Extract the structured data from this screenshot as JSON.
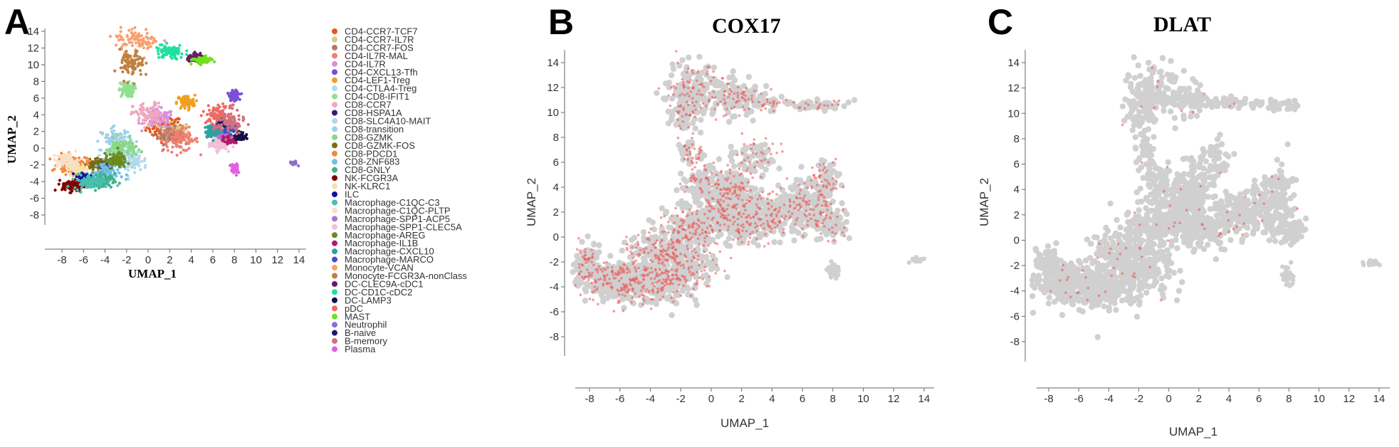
{
  "panels": [
    {
      "id": "A",
      "letter": "A",
      "title": "",
      "xlabel": "UMAP_1",
      "ylabel": "UMAP_2"
    },
    {
      "id": "B",
      "letter": "B",
      "title": "COX17",
      "xlabel": "UMAP_1",
      "ylabel": "UMAP_2"
    },
    {
      "id": "C",
      "letter": "C",
      "title": "DLAT",
      "xlabel": "UMAP_1",
      "ylabel": "UMAP_2"
    }
  ],
  "colors": {
    "background_cells": "#d0d0d0",
    "expression": "#ee5a5a"
  },
  "chart_data": [
    {
      "type": "scatter",
      "panel": "A",
      "xlabel": "UMAP_1",
      "ylabel": "UMAP_2",
      "xlim": [
        -9.5,
        14.5
      ],
      "ylim": [
        -9.5,
        14.8
      ],
      "x_ticks": [
        -8,
        -6,
        -4,
        -2,
        0,
        2,
        4,
        6,
        8,
        10,
        12,
        14
      ],
      "y_ticks": [
        -8,
        -6,
        -4,
        -2,
        0,
        2,
        4,
        6,
        8,
        10,
        12,
        14
      ],
      "legend_placement": "right",
      "series": [
        {
          "name": "CD4-CCR7-TCF7",
          "color": "#e8541e",
          "centers": [
            [
              1.5,
              2.5
            ]
          ],
          "spread": [
            1.2,
            1.0
          ]
        },
        {
          "name": "CD4-CCR7-IL7R",
          "color": "#d8c97e",
          "centers": [
            [
              2.5,
              2.0
            ]
          ],
          "spread": [
            1.0,
            0.8
          ]
        },
        {
          "name": "CD4-CCR7-FOS",
          "color": "#b07a6a",
          "centers": [
            [
              2.0,
              1.5
            ]
          ],
          "spread": [
            0.8,
            0.7
          ]
        },
        {
          "name": "CD4-IL7R-MAL",
          "color": "#f08070",
          "centers": [
            [
              3.0,
              1.0
            ]
          ],
          "spread": [
            1.2,
            1.0
          ]
        },
        {
          "name": "CD4-IL7R",
          "color": "#d890e0",
          "centers": [
            [
              1.0,
              3.5
            ]
          ],
          "spread": [
            1.0,
            0.8
          ]
        },
        {
          "name": "CD4-CXCL13-Tfh",
          "color": "#7a50d8",
          "centers": [
            [
              8.0,
              6.3
            ]
          ],
          "spread": [
            0.3,
            0.4
          ]
        },
        {
          "name": "CD4-LEF1-Treg",
          "color": "#f0a020",
          "centers": [
            [
              3.5,
              5.5
            ]
          ],
          "spread": [
            0.6,
            0.6
          ]
        },
        {
          "name": "CD4-CTLA4-Treg",
          "color": "#a8e0e8",
          "centers": [
            [
              -2.5,
              -1.0
            ]
          ],
          "spread": [
            1.0,
            1.0
          ]
        },
        {
          "name": "CD4-CD8-IFIT1",
          "color": "#90e090",
          "centers": [
            [
              -2.0,
              7.0
            ]
          ],
          "spread": [
            0.5,
            0.6
          ]
        },
        {
          "name": "CD8-CCR7",
          "color": "#f0a8c0",
          "centers": [
            [
              0.0,
              4.0
            ]
          ],
          "spread": [
            1.0,
            1.0
          ]
        },
        {
          "name": "CD8-HSPA1A",
          "color": "#3a1a70",
          "centers": [
            [
              -4.0,
              -2.0
            ]
          ],
          "spread": [
            0.4,
            0.4
          ]
        },
        {
          "name": "CD8-SLC4A10-MAIT",
          "color": "#b0d8ee",
          "centers": [
            [
              -1.5,
              -1.5
            ]
          ],
          "spread": [
            1.0,
            1.0
          ]
        },
        {
          "name": "CD8-transition",
          "color": "#a0d0e8",
          "centers": [
            [
              -3.0,
              1.0
            ]
          ],
          "spread": [
            1.0,
            1.0
          ]
        },
        {
          "name": "CD8-GZMK",
          "color": "#88d888",
          "centers": [
            [
              -2.5,
              0.0
            ]
          ],
          "spread": [
            1.0,
            0.8
          ]
        },
        {
          "name": "CD8-GZMK-FOS",
          "color": "#7a6a18",
          "centers": [
            [
              -5.0,
              -2.0
            ]
          ],
          "spread": [
            0.5,
            0.4
          ]
        },
        {
          "name": "CD8-PDCD1",
          "color": "#f08a40",
          "centers": [
            [
              -7.0,
              -2.0
            ]
          ],
          "spread": [
            1.0,
            0.8
          ]
        },
        {
          "name": "CD8-ZNF683",
          "color": "#70c0e0",
          "centers": [
            [
              -4.0,
              -3.0
            ]
          ],
          "spread": [
            1.0,
            1.0
          ]
        },
        {
          "name": "CD8-GNLY",
          "color": "#40b088",
          "centers": [
            [
              -4.5,
              -4.0
            ]
          ],
          "spread": [
            1.0,
            0.7
          ]
        },
        {
          "name": "NK-FCGR3A",
          "color": "#800000",
          "centers": [
            [
              -7.0,
              -4.5
            ]
          ],
          "spread": [
            0.7,
            0.5
          ]
        },
        {
          "name": "NK-KLRC1",
          "color": "#f8e0a8",
          "centers": [
            [
              -6.5,
              -2.5
            ]
          ],
          "spread": [
            0.6,
            0.5
          ]
        },
        {
          "name": "ILC",
          "color": "#1010a0",
          "centers": [
            [
              -6.0,
              -3.5
            ]
          ],
          "spread": [
            0.4,
            0.3
          ]
        },
        {
          "name": "Macrophage-C1QC-C3",
          "color": "#48c0b0",
          "centers": [
            [
              -5.5,
              -4.0
            ]
          ],
          "spread": [
            1.0,
            0.6
          ]
        },
        {
          "name": "Macrophage-C1QC-PLTP",
          "color": "#f8e0c8",
          "centers": [
            [
              -7.5,
              -1.5
            ]
          ],
          "spread": [
            0.7,
            0.6
          ]
        },
        {
          "name": "Macrophage-SPP1-ACP5",
          "color": "#b070d0",
          "centers": [
            [
              7.0,
              1.5
            ]
          ],
          "spread": [
            0.5,
            0.5
          ]
        },
        {
          "name": "Macrophage-SPP1-CLEC5A",
          "color": "#f0c0d8",
          "centers": [
            [
              6.5,
              0.5
            ]
          ],
          "spread": [
            0.6,
            0.5
          ]
        },
        {
          "name": "Macrophage-AREG",
          "color": "#6a8a20",
          "centers": [
            [
              -3.0,
              -1.5
            ]
          ],
          "spread": [
            0.7,
            0.6
          ]
        },
        {
          "name": "Macrophage-IL1B",
          "color": "#b01870",
          "centers": [
            [
              7.5,
              1.0
            ]
          ],
          "spread": [
            0.4,
            0.3
          ]
        },
        {
          "name": "Macrophage-CXCL10",
          "color": "#30a0a0",
          "centers": [
            [
              6.0,
              2.0
            ]
          ],
          "spread": [
            0.5,
            0.5
          ]
        },
        {
          "name": "Macrophage-MARCO",
          "color": "#4050c0",
          "centers": [
            [
              7.5,
              2.5
            ]
          ],
          "spread": [
            0.4,
            0.4
          ]
        },
        {
          "name": "Monocyte-VCAN",
          "color": "#f8a070",
          "centers": [
            [
              -1.0,
              13.0
            ]
          ],
          "spread": [
            1.5,
            1.0
          ]
        },
        {
          "name": "Monocyte-FCGR3A-nonClass",
          "color": "#c08040",
          "centers": [
            [
              -1.5,
              10.0
            ]
          ],
          "spread": [
            0.8,
            1.2
          ]
        },
        {
          "name": "DC-CLEC9A-cDC1",
          "color": "#6a1a6a",
          "centers": [
            [
              4.5,
              10.8
            ]
          ],
          "spread": [
            0.6,
            0.3
          ]
        },
        {
          "name": "DC-CD1C-cDC2",
          "color": "#20e0a0",
          "centers": [
            [
              2.0,
              11.5
            ]
          ],
          "spread": [
            1.0,
            0.6
          ]
        },
        {
          "name": "DC-LAMP3",
          "color": "#10104a",
          "centers": [
            [
              8.5,
              1.5
            ]
          ],
          "spread": [
            0.3,
            0.3
          ]
        },
        {
          "name": "pDC",
          "color": "#f06a60",
          "centers": [
            [
              6.5,
              4.0
            ]
          ],
          "spread": [
            0.8,
            0.8
          ]
        },
        {
          "name": "MAST",
          "color": "#70e020",
          "centers": [
            [
              5.0,
              10.5
            ]
          ],
          "spread": [
            0.6,
            0.3
          ]
        },
        {
          "name": "Neutrophil",
          "color": "#8a70d0",
          "centers": [
            [
              13.5,
              -1.8
            ]
          ],
          "spread": [
            0.25,
            0.15
          ]
        },
        {
          "name": "B-naive",
          "color": "#1a1a6a",
          "centers": [
            [
              7.0,
              3.0
            ]
          ],
          "spread": [
            0.3,
            0.3
          ]
        },
        {
          "name": "B-memory",
          "color": "#d07080",
          "centers": [
            [
              7.5,
              3.0
            ]
          ],
          "spread": [
            1.0,
            1.0
          ]
        },
        {
          "name": "Plasma",
          "color": "#e060e0",
          "centers": [
            [
              8.0,
              -2.5
            ]
          ],
          "spread": [
            0.25,
            0.5
          ]
        }
      ]
    },
    {
      "type": "scatter",
      "panel": "B",
      "title": "COX17",
      "xlabel": "UMAP_1",
      "ylabel": "UMAP_2",
      "xlim": [
        -9.0,
        15.0
      ],
      "ylim": [
        -10.0,
        15.0
      ],
      "x_ticks": [
        -8,
        -6,
        -4,
        -2,
        0,
        2,
        4,
        6,
        8,
        10,
        12,
        14
      ],
      "y_ticks": [
        -8,
        -6,
        -4,
        -2,
        0,
        2,
        4,
        6,
        8,
        10,
        12,
        14
      ],
      "expression_density": 0.42
    },
    {
      "type": "scatter",
      "panel": "C",
      "title": "DLAT",
      "xlabel": "UMAP_1",
      "ylabel": "UMAP_2",
      "xlim": [
        -9.5,
        14.8
      ],
      "ylim": [
        -10.0,
        15.0
      ],
      "x_ticks": [
        -8,
        -6,
        -4,
        -2,
        0,
        2,
        4,
        6,
        8,
        10,
        12,
        14
      ],
      "y_ticks": [
        -8,
        -6,
        -4,
        -2,
        0,
        2,
        4,
        6,
        8,
        10,
        12,
        14
      ],
      "expression_density": 0.03
    }
  ]
}
